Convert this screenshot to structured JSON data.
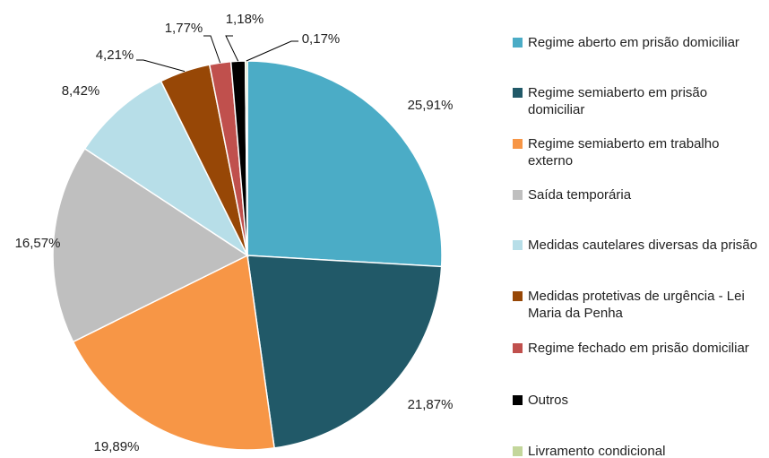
{
  "chart_data": {
    "type": "pie",
    "categories": [
      "Regime aberto em prisão domiciliar",
      "Regime semiaberto em prisão domiciliar",
      "Regime semiaberto em trabalho externo",
      "Saída temporária",
      "Medidas cautelares diversas da prisão",
      "Medidas protetivas de urgência - Lei Maria da Penha",
      "Regime fechado em prisão domiciliar",
      "Outros",
      "Livramento condicional"
    ],
    "values": [
      25.91,
      21.87,
      19.89,
      16.57,
      8.42,
      4.21,
      1.77,
      1.18,
      0.17
    ],
    "value_labels": [
      "25,91%",
      "21,87%",
      "19,89%",
      "16,57%",
      "8,42%",
      "4,21%",
      "1,77%",
      "1,18%",
      "0,17%"
    ],
    "colors": [
      "#4bacc6",
      "#215968",
      "#f79646",
      "#bfbfbf",
      "#b7dee8",
      "#974706",
      "#c0504d",
      "#000000",
      "#c3d69b"
    ],
    "legend": "right"
  }
}
